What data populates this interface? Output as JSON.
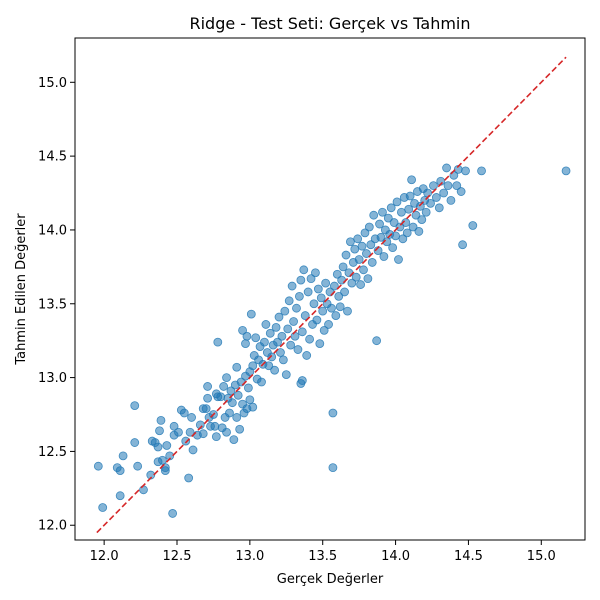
{
  "chart_data": {
    "type": "scatter",
    "title": "Ridge - Test Seti: Gerçek vs Tahmin",
    "xlabel": "Gerçek Değerler",
    "ylabel": "Tahmin Edilen Değerler",
    "xlim": [
      11.8,
      15.3
    ],
    "ylim": [
      11.9,
      15.3
    ],
    "xticks": [
      12.0,
      12.5,
      13.0,
      13.5,
      14.0,
      14.5,
      15.0
    ],
    "yticks": [
      12.0,
      12.5,
      13.0,
      13.5,
      14.0,
      14.5,
      15.0
    ],
    "xtick_labels": [
      "12.0",
      "12.5",
      "13.0",
      "13.5",
      "14.0",
      "14.5",
      "15.0"
    ],
    "ytick_labels": [
      "12.0",
      "12.5",
      "13.0",
      "13.5",
      "14.0",
      "14.5",
      "15.0"
    ],
    "grid": false,
    "point_color": "#1f77b4",
    "reference_line": {
      "style": "dashed",
      "color": "#d62728",
      "from": [
        11.95,
        11.95
      ],
      "to": [
        15.17,
        15.17
      ]
    },
    "series": [
      {
        "points": [
          [
            11.96,
            12.4
          ],
          [
            11.99,
            12.12
          ],
          [
            12.09,
            12.39
          ],
          [
            12.11,
            12.37
          ],
          [
            12.11,
            12.2
          ],
          [
            12.13,
            12.47
          ],
          [
            12.21,
            12.81
          ],
          [
            12.21,
            12.56
          ],
          [
            12.23,
            12.4
          ],
          [
            12.27,
            12.24
          ],
          [
            12.32,
            12.34
          ],
          [
            12.33,
            12.57
          ],
          [
            12.35,
            12.56
          ],
          [
            12.37,
            12.53
          ],
          [
            12.37,
            12.43
          ],
          [
            12.38,
            12.64
          ],
          [
            12.39,
            12.71
          ],
          [
            12.4,
            12.44
          ],
          [
            12.42,
            12.39
          ],
          [
            12.42,
            12.37
          ],
          [
            12.43,
            12.54
          ],
          [
            12.45,
            12.47
          ],
          [
            12.47,
            12.08
          ],
          [
            12.48,
            12.67
          ],
          [
            12.48,
            12.61
          ],
          [
            12.51,
            12.63
          ],
          [
            12.53,
            12.78
          ],
          [
            12.55,
            12.76
          ],
          [
            12.56,
            12.57
          ],
          [
            12.58,
            12.32
          ],
          [
            12.59,
            12.63
          ],
          [
            12.6,
            12.73
          ],
          [
            12.61,
            12.51
          ],
          [
            12.64,
            12.61
          ],
          [
            12.66,
            12.68
          ],
          [
            12.68,
            12.79
          ],
          [
            12.68,
            12.62
          ],
          [
            12.7,
            12.79
          ],
          [
            12.71,
            12.94
          ],
          [
            12.71,
            12.86
          ],
          [
            12.72,
            12.73
          ],
          [
            12.73,
            12.67
          ],
          [
            12.75,
            12.75
          ],
          [
            12.76,
            12.67
          ],
          [
            12.77,
            12.89
          ],
          [
            12.77,
            12.6
          ],
          [
            12.78,
            12.87
          ],
          [
            12.78,
            13.24
          ],
          [
            12.8,
            12.87
          ],
          [
            12.81,
            12.66
          ],
          [
            12.82,
            12.94
          ],
          [
            12.83,
            12.73
          ],
          [
            12.84,
            12.63
          ],
          [
            12.84,
            13.0
          ],
          [
            12.85,
            12.86
          ],
          [
            12.86,
            12.76
          ],
          [
            12.87,
            12.91
          ],
          [
            12.88,
            12.83
          ],
          [
            12.89,
            12.58
          ],
          [
            12.9,
            12.95
          ],
          [
            12.91,
            12.73
          ],
          [
            12.91,
            13.07
          ],
          [
            12.92,
            12.88
          ],
          [
            12.93,
            12.65
          ],
          [
            12.94,
            12.97
          ],
          [
            12.95,
            12.82
          ],
          [
            12.95,
            13.32
          ],
          [
            12.96,
            12.76
          ],
          [
            12.97,
            13.01
          ],
          [
            12.97,
            13.23
          ],
          [
            12.98,
            13.28
          ],
          [
            12.98,
            12.79
          ],
          [
            12.99,
            12.93
          ],
          [
            13.0,
            13.04
          ],
          [
            13.0,
            12.85
          ],
          [
            13.01,
            13.43
          ],
          [
            13.02,
            12.8
          ],
          [
            13.02,
            13.08
          ],
          [
            13.03,
            13.15
          ],
          [
            13.04,
            13.27
          ],
          [
            13.05,
            12.99
          ],
          [
            13.06,
            13.12
          ],
          [
            13.07,
            13.21
          ],
          [
            13.08,
            12.97
          ],
          [
            13.09,
            13.09
          ],
          [
            13.1,
            13.24
          ],
          [
            13.11,
            13.36
          ],
          [
            13.12,
            13.17
          ],
          [
            13.13,
            13.08
          ],
          [
            13.14,
            13.3
          ],
          [
            13.15,
            13.14
          ],
          [
            13.16,
            13.22
          ],
          [
            13.17,
            13.05
          ],
          [
            13.18,
            13.34
          ],
          [
            13.19,
            13.24
          ],
          [
            13.2,
            13.41
          ],
          [
            13.21,
            13.17
          ],
          [
            13.22,
            13.28
          ],
          [
            13.23,
            13.12
          ],
          [
            13.24,
            13.45
          ],
          [
            13.25,
            13.02
          ],
          [
            13.26,
            13.33
          ],
          [
            13.27,
            13.52
          ],
          [
            13.28,
            13.22
          ],
          [
            13.29,
            13.62
          ],
          [
            13.3,
            13.38
          ],
          [
            13.31,
            13.28
          ],
          [
            13.32,
            13.47
          ],
          [
            13.33,
            13.19
          ],
          [
            13.34,
            13.55
          ],
          [
            13.35,
            13.66
          ],
          [
            13.35,
            12.96
          ],
          [
            13.36,
            13.31
          ],
          [
            13.36,
            12.98
          ],
          [
            13.37,
            13.73
          ],
          [
            13.38,
            13.42
          ],
          [
            13.39,
            13.15
          ],
          [
            13.4,
            13.58
          ],
          [
            13.41,
            13.26
          ],
          [
            13.42,
            13.67
          ],
          [
            13.43,
            13.36
          ],
          [
            13.44,
            13.5
          ],
          [
            13.45,
            13.71
          ],
          [
            13.46,
            13.39
          ],
          [
            13.47,
            13.6
          ],
          [
            13.48,
            13.23
          ],
          [
            13.49,
            13.54
          ],
          [
            13.5,
            13.45
          ],
          [
            13.51,
            13.32
          ],
          [
            13.52,
            13.64
          ],
          [
            13.53,
            13.5
          ],
          [
            13.54,
            13.36
          ],
          [
            13.55,
            13.58
          ],
          [
            13.56,
            13.47
          ],
          [
            13.57,
            12.76
          ],
          [
            13.57,
            12.39
          ],
          [
            13.58,
            13.62
          ],
          [
            13.59,
            13.42
          ],
          [
            13.6,
            13.7
          ],
          [
            13.61,
            13.55
          ],
          [
            13.62,
            13.48
          ],
          [
            13.63,
            13.66
          ],
          [
            13.64,
            13.75
          ],
          [
            13.65,
            13.58
          ],
          [
            13.66,
            13.83
          ],
          [
            13.67,
            13.45
          ],
          [
            13.68,
            13.71
          ],
          [
            13.69,
            13.92
          ],
          [
            13.7,
            13.64
          ],
          [
            13.71,
            13.78
          ],
          [
            13.72,
            13.87
          ],
          [
            13.73,
            13.68
          ],
          [
            13.74,
            13.94
          ],
          [
            13.75,
            13.8
          ],
          [
            13.76,
            13.63
          ],
          [
            13.77,
            13.89
          ],
          [
            13.78,
            13.73
          ],
          [
            13.79,
            13.98
          ],
          [
            13.8,
            13.84
          ],
          [
            13.81,
            13.67
          ],
          [
            13.82,
            14.02
          ],
          [
            13.83,
            13.9
          ],
          [
            13.84,
            13.78
          ],
          [
            13.85,
            14.1
          ],
          [
            13.86,
            13.94
          ],
          [
            13.87,
            13.25
          ],
          [
            13.88,
            13.86
          ],
          [
            13.89,
            14.04
          ],
          [
            13.9,
            13.95
          ],
          [
            13.91,
            14.12
          ],
          [
            13.92,
            13.82
          ],
          [
            13.93,
            14.0
          ],
          [
            13.94,
            13.92
          ],
          [
            13.95,
            14.08
          ],
          [
            13.96,
            13.97
          ],
          [
            13.97,
            14.15
          ],
          [
            13.98,
            13.88
          ],
          [
            13.99,
            14.05
          ],
          [
            14.0,
            13.96
          ],
          [
            14.01,
            14.19
          ],
          [
            14.02,
            13.8
          ],
          [
            14.03,
            14.02
          ],
          [
            14.04,
            14.12
          ],
          [
            14.05,
            13.94
          ],
          [
            14.06,
            14.22
          ],
          [
            14.07,
            14.05
          ],
          [
            14.08,
            13.98
          ],
          [
            14.09,
            14.14
          ],
          [
            14.1,
            14.23
          ],
          [
            14.11,
            14.34
          ],
          [
            14.12,
            14.02
          ],
          [
            14.13,
            14.18
          ],
          [
            14.14,
            14.1
          ],
          [
            14.15,
            14.26
          ],
          [
            14.16,
            13.99
          ],
          [
            14.17,
            14.16
          ],
          [
            14.18,
            14.07
          ],
          [
            14.19,
            14.28
          ],
          [
            14.2,
            14.2
          ],
          [
            14.21,
            14.12
          ],
          [
            14.22,
            14.25
          ],
          [
            14.24,
            14.18
          ],
          [
            14.26,
            14.3
          ],
          [
            14.28,
            14.22
          ],
          [
            14.3,
            14.15
          ],
          [
            14.31,
            14.33
          ],
          [
            14.33,
            14.25
          ],
          [
            14.35,
            14.42
          ],
          [
            14.36,
            14.3
          ],
          [
            14.38,
            14.2
          ],
          [
            14.4,
            14.37
          ],
          [
            14.42,
            14.3
          ],
          [
            14.43,
            14.41
          ],
          [
            14.45,
            14.26
          ],
          [
            14.46,
            13.9
          ],
          [
            14.48,
            14.4
          ],
          [
            14.53,
            14.03
          ],
          [
            14.59,
            14.4
          ],
          [
            15.17,
            14.4
          ]
        ]
      }
    ]
  }
}
